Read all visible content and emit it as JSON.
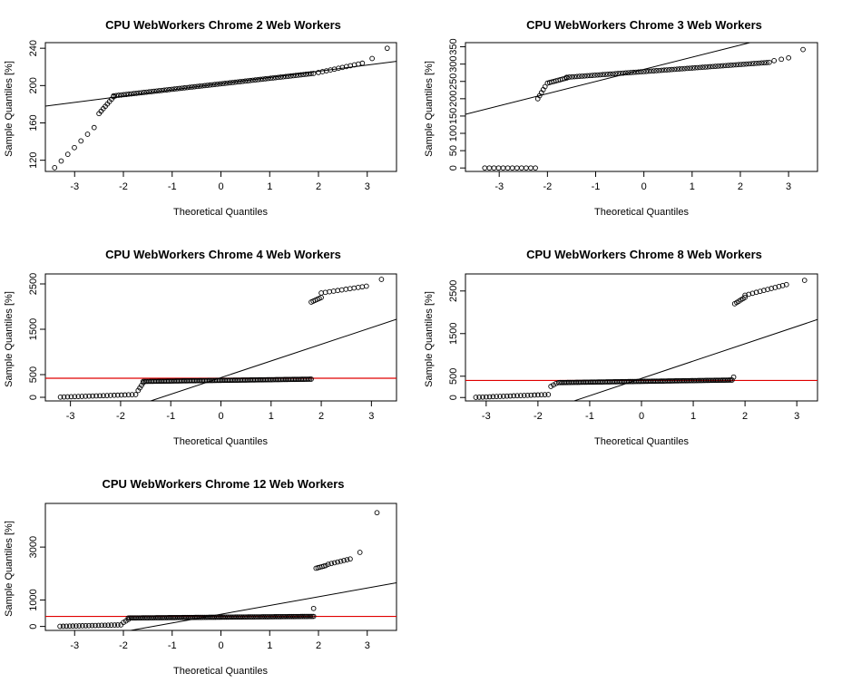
{
  "chart_data": [
    {
      "type": "scatter",
      "title": "CPU WebWorkers Chrome  2  Web Workers",
      "xlabel": "Theoretical Quantiles",
      "ylabel": "Sample Quantiles [%]",
      "xticks": [
        -3,
        -2,
        -1,
        0,
        1,
        2,
        3
      ],
      "yticks": [
        120,
        160,
        200,
        240
      ],
      "xlim": [
        -3.6,
        3.6
      ],
      "ylim": [
        108,
        246
      ],
      "qqline": {
        "x": [
          -3.6,
          3.6
        ],
        "y": [
          178,
          226
        ]
      },
      "hline": null,
      "segments": [
        {
          "x0": -3.41,
          "x1": -2.6,
          "n": 7,
          "y0": 112,
          "y1": 155
        },
        {
          "x0": -2.5,
          "x1": -2.2,
          "n": 8,
          "y0": 170,
          "y1": 188
        },
        {
          "x0": -2.2,
          "x1": 1.9,
          "n": 80,
          "y0": 189,
          "y1": 213
        },
        {
          "x0": 2.0,
          "x1": 2.9,
          "n": 12,
          "y0": 214,
          "y1": 224
        },
        {
          "x0": 3.1,
          "x1": 3.1,
          "n": 1,
          "y0": 229,
          "y1": 229
        },
        {
          "x0": 3.41,
          "x1": 3.41,
          "n": 1,
          "y0": 240,
          "y1": 240
        }
      ]
    },
    {
      "type": "scatter",
      "title": "CPU WebWorkers Chrome  3  Web Workers",
      "xlabel": "Theoretical Quantiles",
      "ylabel": "Sample Quantiles [%]",
      "xticks": [
        -3,
        -2,
        -1,
        0,
        1,
        2,
        3
      ],
      "yticks": [
        0,
        50,
        100,
        150,
        200,
        250,
        300,
        350
      ],
      "xlim": [
        -3.7,
        3.6
      ],
      "ylim": [
        -10,
        362
      ],
      "qqline": {
        "x": [
          -3.7,
          2.2
        ],
        "y": [
          155,
          362
        ]
      },
      "hline": null,
      "segments": [
        {
          "x0": -3.3,
          "x1": -2.25,
          "n": 12,
          "y0": 0,
          "y1": 0
        },
        {
          "x0": -2.2,
          "x1": -2.05,
          "n": 5,
          "y0": 200,
          "y1": 235
        },
        {
          "x0": -2.0,
          "x1": -1.6,
          "n": 10,
          "y0": 245,
          "y1": 260
        },
        {
          "x0": -1.6,
          "x1": 2.6,
          "n": 80,
          "y0": 262,
          "y1": 305
        },
        {
          "x0": 2.7,
          "x1": 3.0,
          "n": 3,
          "y0": 310,
          "y1": 318
        },
        {
          "x0": 3.3,
          "x1": 3.3,
          "n": 1,
          "y0": 342,
          "y1": 342
        }
      ]
    },
    {
      "type": "scatter",
      "title": "CPU WebWorkers Chrome  4  Web Workers",
      "xlabel": "Theoretical Quantiles",
      "ylabel": "Sample Quantiles [%]",
      "xticks": [
        -3,
        -2,
        -1,
        0,
        1,
        2,
        3
      ],
      "yticks": [
        0,
        500,
        1500,
        2500
      ],
      "xlim": [
        -3.5,
        3.5
      ],
      "ylim": [
        -80,
        2720
      ],
      "qqline": {
        "x": [
          -1.4,
          3.5
        ],
        "y": [
          -80,
          1720
        ]
      },
      "hline": 420,
      "segments": [
        {
          "x0": -3.2,
          "x1": -1.7,
          "n": 22,
          "y0": 5,
          "y1": 60
        },
        {
          "x0": -1.65,
          "x1": -1.55,
          "n": 4,
          "y0": 150,
          "y1": 320
        },
        {
          "x0": -1.55,
          "x1": 1.8,
          "n": 120,
          "y0": 350,
          "y1": 400
        },
        {
          "x0": 1.8,
          "x1": 2.0,
          "n": 6,
          "y0": 2100,
          "y1": 2200
        },
        {
          "x0": 2.0,
          "x1": 2.9,
          "n": 12,
          "y0": 2300,
          "y1": 2450
        },
        {
          "x0": 3.2,
          "x1": 3.2,
          "n": 1,
          "y0": 2600,
          "y1": 2600
        }
      ]
    },
    {
      "type": "scatter",
      "title": "CPU WebWorkers Chrome  8  Web Workers",
      "xlabel": "Theoretical Quantiles",
      "ylabel": "Sample Quantiles [%]",
      "xticks": [
        -3,
        -2,
        -1,
        0,
        1,
        2,
        3
      ],
      "yticks": [
        0,
        500,
        1500,
        2500
      ],
      "xlim": [
        -3.4,
        3.4
      ],
      "ylim": [
        -80,
        2900
      ],
      "qqline": {
        "x": [
          -1.3,
          3.4
        ],
        "y": [
          -80,
          1830
        ]
      },
      "hline": 400,
      "segments": [
        {
          "x0": -3.2,
          "x1": -1.8,
          "n": 22,
          "y0": 5,
          "y1": 70
        },
        {
          "x0": -1.75,
          "x1": -1.65,
          "n": 3,
          "y0": 260,
          "y1": 330
        },
        {
          "x0": -1.6,
          "x1": 1.75,
          "n": 120,
          "y0": 350,
          "y1": 410
        },
        {
          "x0": 1.78,
          "x1": 1.78,
          "n": 1,
          "y0": 480,
          "y1": 480
        },
        {
          "x0": 1.8,
          "x1": 2.0,
          "n": 6,
          "y0": 2200,
          "y1": 2350
        },
        {
          "x0": 2.0,
          "x1": 2.8,
          "n": 12,
          "y0": 2400,
          "y1": 2650
        },
        {
          "x0": 3.15,
          "x1": 3.15,
          "n": 1,
          "y0": 2750,
          "y1": 2750
        }
      ]
    },
    {
      "type": "scatter",
      "title": "CPU WebWorkers Chrome  12  Web Workers",
      "xlabel": "Theoretical Quantiles",
      "ylabel": "Sample Quantiles [%]",
      "xticks": [
        -3,
        -2,
        -1,
        0,
        1,
        2,
        3
      ],
      "yticks": [
        0,
        1000,
        3000
      ],
      "xlim": [
        -3.6,
        3.6
      ],
      "ylim": [
        -150,
        4650
      ],
      "qqline": {
        "x": [
          -1.85,
          3.6
        ],
        "y": [
          -150,
          1650
        ]
      },
      "hline": 380,
      "segments": [
        {
          "x0": -3.3,
          "x1": -2.05,
          "n": 20,
          "y0": 5,
          "y1": 60
        },
        {
          "x0": -2.0,
          "x1": -1.9,
          "n": 3,
          "y0": 150,
          "y1": 260
        },
        {
          "x0": -1.9,
          "x1": 1.9,
          "n": 120,
          "y0": 320,
          "y1": 380
        },
        {
          "x0": 1.9,
          "x1": 1.9,
          "n": 1,
          "y0": 680,
          "y1": 680
        },
        {
          "x0": 1.95,
          "x1": 2.15,
          "n": 6,
          "y0": 2200,
          "y1": 2300
        },
        {
          "x0": 2.2,
          "x1": 2.65,
          "n": 8,
          "y0": 2350,
          "y1": 2550
        },
        {
          "x0": 2.85,
          "x1": 2.85,
          "n": 1,
          "y0": 2800,
          "y1": 2800
        },
        {
          "x0": 3.2,
          "x1": 3.2,
          "n": 1,
          "y0": 4300,
          "y1": 4300
        }
      ]
    }
  ]
}
